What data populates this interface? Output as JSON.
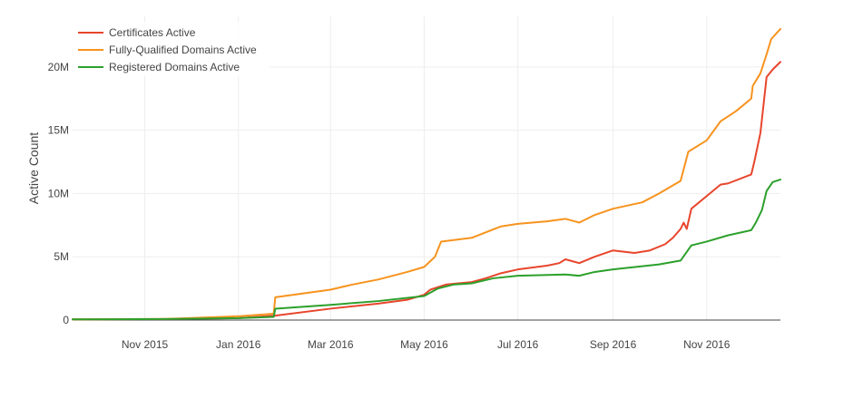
{
  "chart_data": {
    "type": "line",
    "title": "",
    "xlabel": "",
    "ylabel": "Active Count",
    "x_type": "date",
    "xlim": [
      "2015-09-15",
      "2016-12-19"
    ],
    "ylim": [
      0,
      24000000
    ],
    "x_ticks": [
      {
        "date": "2015-11-01",
        "label": "Nov 2015"
      },
      {
        "date": "2016-01-01",
        "label": "Jan 2016"
      },
      {
        "date": "2016-03-01",
        "label": "Mar 2016"
      },
      {
        "date": "2016-05-01",
        "label": "May 2016"
      },
      {
        "date": "2016-07-01",
        "label": "Jul 2016"
      },
      {
        "date": "2016-09-01",
        "label": "Sep 2016"
      },
      {
        "date": "2016-11-01",
        "label": "Nov 2016"
      }
    ],
    "y_ticks": [
      {
        "value": 0,
        "label": "0"
      },
      {
        "value": 5000000,
        "label": "5M"
      },
      {
        "value": 10000000,
        "label": "10M"
      },
      {
        "value": 15000000,
        "label": "15M"
      },
      {
        "value": 20000000,
        "label": "20M"
      }
    ],
    "grid": true,
    "legend_position": "top-left",
    "series": [
      {
        "name": "Certificates Active",
        "color": "#e8452c",
        "points": [
          [
            "2015-09-15",
            50000
          ],
          [
            "2015-11-15",
            80000
          ],
          [
            "2016-01-01",
            150000
          ],
          [
            "2016-01-25",
            350000
          ],
          [
            "2016-03-01",
            900000
          ],
          [
            "2016-04-01",
            1300000
          ],
          [
            "2016-04-20",
            1600000
          ],
          [
            "2016-05-01",
            2000000
          ],
          [
            "2016-05-05",
            2400000
          ],
          [
            "2016-05-15",
            2800000
          ],
          [
            "2016-06-01",
            3000000
          ],
          [
            "2016-06-10",
            3300000
          ],
          [
            "2016-06-20",
            3700000
          ],
          [
            "2016-07-01",
            4000000
          ],
          [
            "2016-07-20",
            4300000
          ],
          [
            "2016-07-28",
            4500000
          ],
          [
            "2016-08-01",
            4800000
          ],
          [
            "2016-08-10",
            4500000
          ],
          [
            "2016-08-20",
            5000000
          ],
          [
            "2016-09-01",
            5500000
          ],
          [
            "2016-09-15",
            5300000
          ],
          [
            "2016-09-25",
            5500000
          ],
          [
            "2016-10-05",
            6000000
          ],
          [
            "2016-10-10",
            6500000
          ],
          [
            "2016-10-15",
            7200000
          ],
          [
            "2016-10-17",
            7700000
          ],
          [
            "2016-10-19",
            7200000
          ],
          [
            "2016-10-22",
            8800000
          ],
          [
            "2016-11-01",
            9800000
          ],
          [
            "2016-11-10",
            10700000
          ],
          [
            "2016-11-15",
            10800000
          ],
          [
            "2016-11-30",
            11500000
          ],
          [
            "2016-12-02",
            12500000
          ],
          [
            "2016-12-06",
            14800000
          ],
          [
            "2016-12-08",
            17000000
          ],
          [
            "2016-12-10",
            19200000
          ],
          [
            "2016-12-14",
            19800000
          ],
          [
            "2016-12-19",
            20400000
          ]
        ]
      },
      {
        "name": "Fully-Qualified Domains Active",
        "color": "#f7931e",
        "points": [
          [
            "2015-09-15",
            50000
          ],
          [
            "2015-11-15",
            90000
          ],
          [
            "2016-01-01",
            300000
          ],
          [
            "2016-01-24",
            500000
          ],
          [
            "2016-01-25",
            1800000
          ],
          [
            "2016-03-01",
            2400000
          ],
          [
            "2016-03-15",
            2800000
          ],
          [
            "2016-04-01",
            3200000
          ],
          [
            "2016-04-20",
            3800000
          ],
          [
            "2016-05-01",
            4200000
          ],
          [
            "2016-05-08",
            5000000
          ],
          [
            "2016-05-12",
            6200000
          ],
          [
            "2016-06-01",
            6500000
          ],
          [
            "2016-06-20",
            7400000
          ],
          [
            "2016-07-01",
            7600000
          ],
          [
            "2016-07-20",
            7800000
          ],
          [
            "2016-08-01",
            8000000
          ],
          [
            "2016-08-10",
            7700000
          ],
          [
            "2016-08-20",
            8300000
          ],
          [
            "2016-09-01",
            8800000
          ],
          [
            "2016-09-20",
            9300000
          ],
          [
            "2016-10-01",
            10000000
          ],
          [
            "2016-10-15",
            11000000
          ],
          [
            "2016-10-20",
            13300000
          ],
          [
            "2016-11-01",
            14200000
          ],
          [
            "2016-11-10",
            15700000
          ],
          [
            "2016-11-20",
            16500000
          ],
          [
            "2016-11-30",
            17500000
          ],
          [
            "2016-12-01",
            18500000
          ],
          [
            "2016-12-06",
            19500000
          ],
          [
            "2016-12-10",
            21000000
          ],
          [
            "2016-12-13",
            22200000
          ],
          [
            "2016-12-19",
            23000000
          ]
        ]
      },
      {
        "name": "Registered Domains Active",
        "color": "#2ca02c",
        "points": [
          [
            "2015-09-15",
            50000
          ],
          [
            "2015-11-15",
            80000
          ],
          [
            "2016-01-01",
            150000
          ],
          [
            "2016-01-24",
            250000
          ],
          [
            "2016-01-25",
            900000
          ],
          [
            "2016-03-01",
            1200000
          ],
          [
            "2016-04-01",
            1500000
          ],
          [
            "2016-05-01",
            1900000
          ],
          [
            "2016-05-10",
            2500000
          ],
          [
            "2016-05-20",
            2800000
          ],
          [
            "2016-06-01",
            2900000
          ],
          [
            "2016-06-15",
            3300000
          ],
          [
            "2016-07-01",
            3500000
          ],
          [
            "2016-08-01",
            3600000
          ],
          [
            "2016-08-10",
            3500000
          ],
          [
            "2016-08-20",
            3800000
          ],
          [
            "2016-09-01",
            4000000
          ],
          [
            "2016-10-01",
            4400000
          ],
          [
            "2016-10-15",
            4700000
          ],
          [
            "2016-10-22",
            5900000
          ],
          [
            "2016-11-01",
            6200000
          ],
          [
            "2016-11-15",
            6700000
          ],
          [
            "2016-11-30",
            7100000
          ],
          [
            "2016-12-03",
            7700000
          ],
          [
            "2016-12-07",
            8700000
          ],
          [
            "2016-12-10",
            10200000
          ],
          [
            "2016-12-14",
            10900000
          ],
          [
            "2016-12-19",
            11100000
          ]
        ]
      }
    ]
  }
}
